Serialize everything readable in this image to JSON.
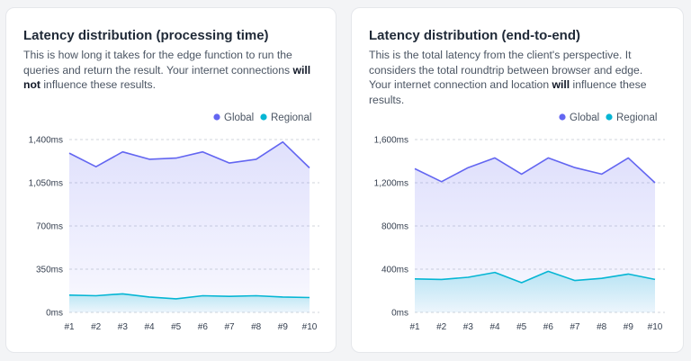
{
  "cards": [
    {
      "title": "Latency distribution (processing time)",
      "desc": {
        "p1": "This is how long it takes for the edge function to run the queries and return the result. Your internet connections ",
        "b1": "will not",
        "p2": " influence these results."
      }
    },
    {
      "title": "Latency distribution (end-to-end)",
      "desc": {
        "p1": "This is the total latency from the client's perspective. It considers the total roundtrip between browser and edge. Your internet connection and location ",
        "b1": "will",
        "p2": " influence these results."
      }
    }
  ],
  "colors": {
    "global": "#6366f1",
    "regional": "#06b6d4",
    "grid": "#d1d5db"
  },
  "chart_data": [
    {
      "type": "area",
      "categories": [
        "#1",
        "#2",
        "#3",
        "#4",
        "#5",
        "#6",
        "#7",
        "#8",
        "#9",
        "#10"
      ],
      "yticks": [
        0,
        350,
        700,
        1050,
        1400
      ],
      "ytick_labels": [
        "0ms",
        "350ms",
        "700ms",
        "1,050ms",
        "1,400ms"
      ],
      "ylim": [
        0,
        1400
      ],
      "grid": true,
      "legend_position": "top-right",
      "series": [
        {
          "name": "Global",
          "values": [
            1290,
            1180,
            1300,
            1240,
            1250,
            1300,
            1210,
            1240,
            1380,
            1170
          ]
        },
        {
          "name": "Regional",
          "values": [
            140,
            135,
            150,
            125,
            110,
            135,
            130,
            135,
            125,
            120
          ]
        }
      ]
    },
    {
      "type": "area",
      "categories": [
        "#1",
        "#2",
        "#3",
        "#4",
        "#5",
        "#6",
        "#7",
        "#8",
        "#9",
        "#10"
      ],
      "yticks": [
        0,
        400,
        800,
        1200,
        1600
      ],
      "ytick_labels": [
        "0ms",
        "400ms",
        "800ms",
        "1,200ms",
        "1,600ms"
      ],
      "ylim": [
        0,
        1600
      ],
      "grid": true,
      "legend_position": "top-right",
      "series": [
        {
          "name": "Global",
          "values": [
            1330,
            1210,
            1340,
            1430,
            1280,
            1430,
            1340,
            1280,
            1430,
            1200
          ]
        },
        {
          "name": "Regional",
          "values": [
            310,
            305,
            325,
            370,
            275,
            380,
            295,
            315,
            355,
            305
          ]
        }
      ]
    }
  ]
}
